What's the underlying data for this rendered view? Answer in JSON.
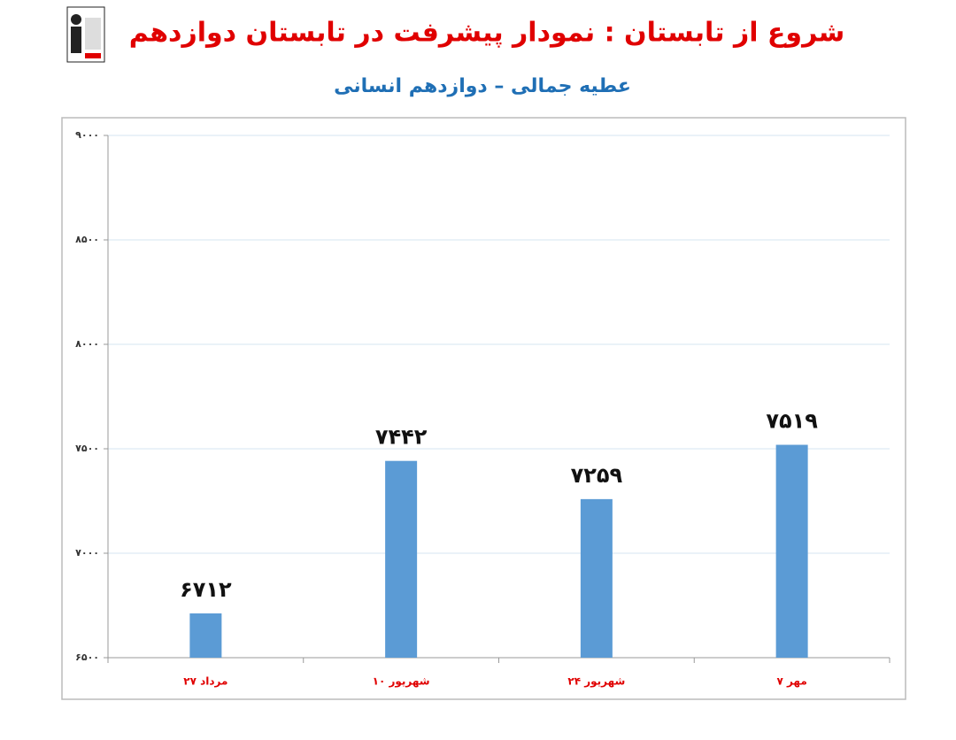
{
  "chart_data": {
    "type": "bar",
    "title": "شروع از تابستان : نمودار پیشرفت در تابستان دوازدهم",
    "subtitle": "عطیه جمالی – دوازدهم انسانی",
    "categories": [
      "۲۷ مرداد",
      "۱۰ شهریور",
      "۲۴ شهریور",
      "۷ مهر"
    ],
    "values": [
      6712,
      7442,
      7259,
      7519
    ],
    "value_labels": [
      "۶۷۱۲",
      "۷۴۴۲",
      "۷۲۵۹",
      "۷۵۱۹"
    ],
    "color": "#5b9bd5",
    "ylim": [
      6500,
      9000
    ],
    "yticks": [
      {
        "value": 6500,
        "label": "۶۵۰۰"
      },
      {
        "value": 7000,
        "label": "۷۰۰۰"
      },
      {
        "value": 7500,
        "label": "۷۵۰۰"
      },
      {
        "value": 8000,
        "label": "۸۰۰۰"
      },
      {
        "value": 8500,
        "label": "۸۵۰۰"
      },
      {
        "value": 9000,
        "label": "۹۰۰۰"
      }
    ],
    "grid": true
  }
}
